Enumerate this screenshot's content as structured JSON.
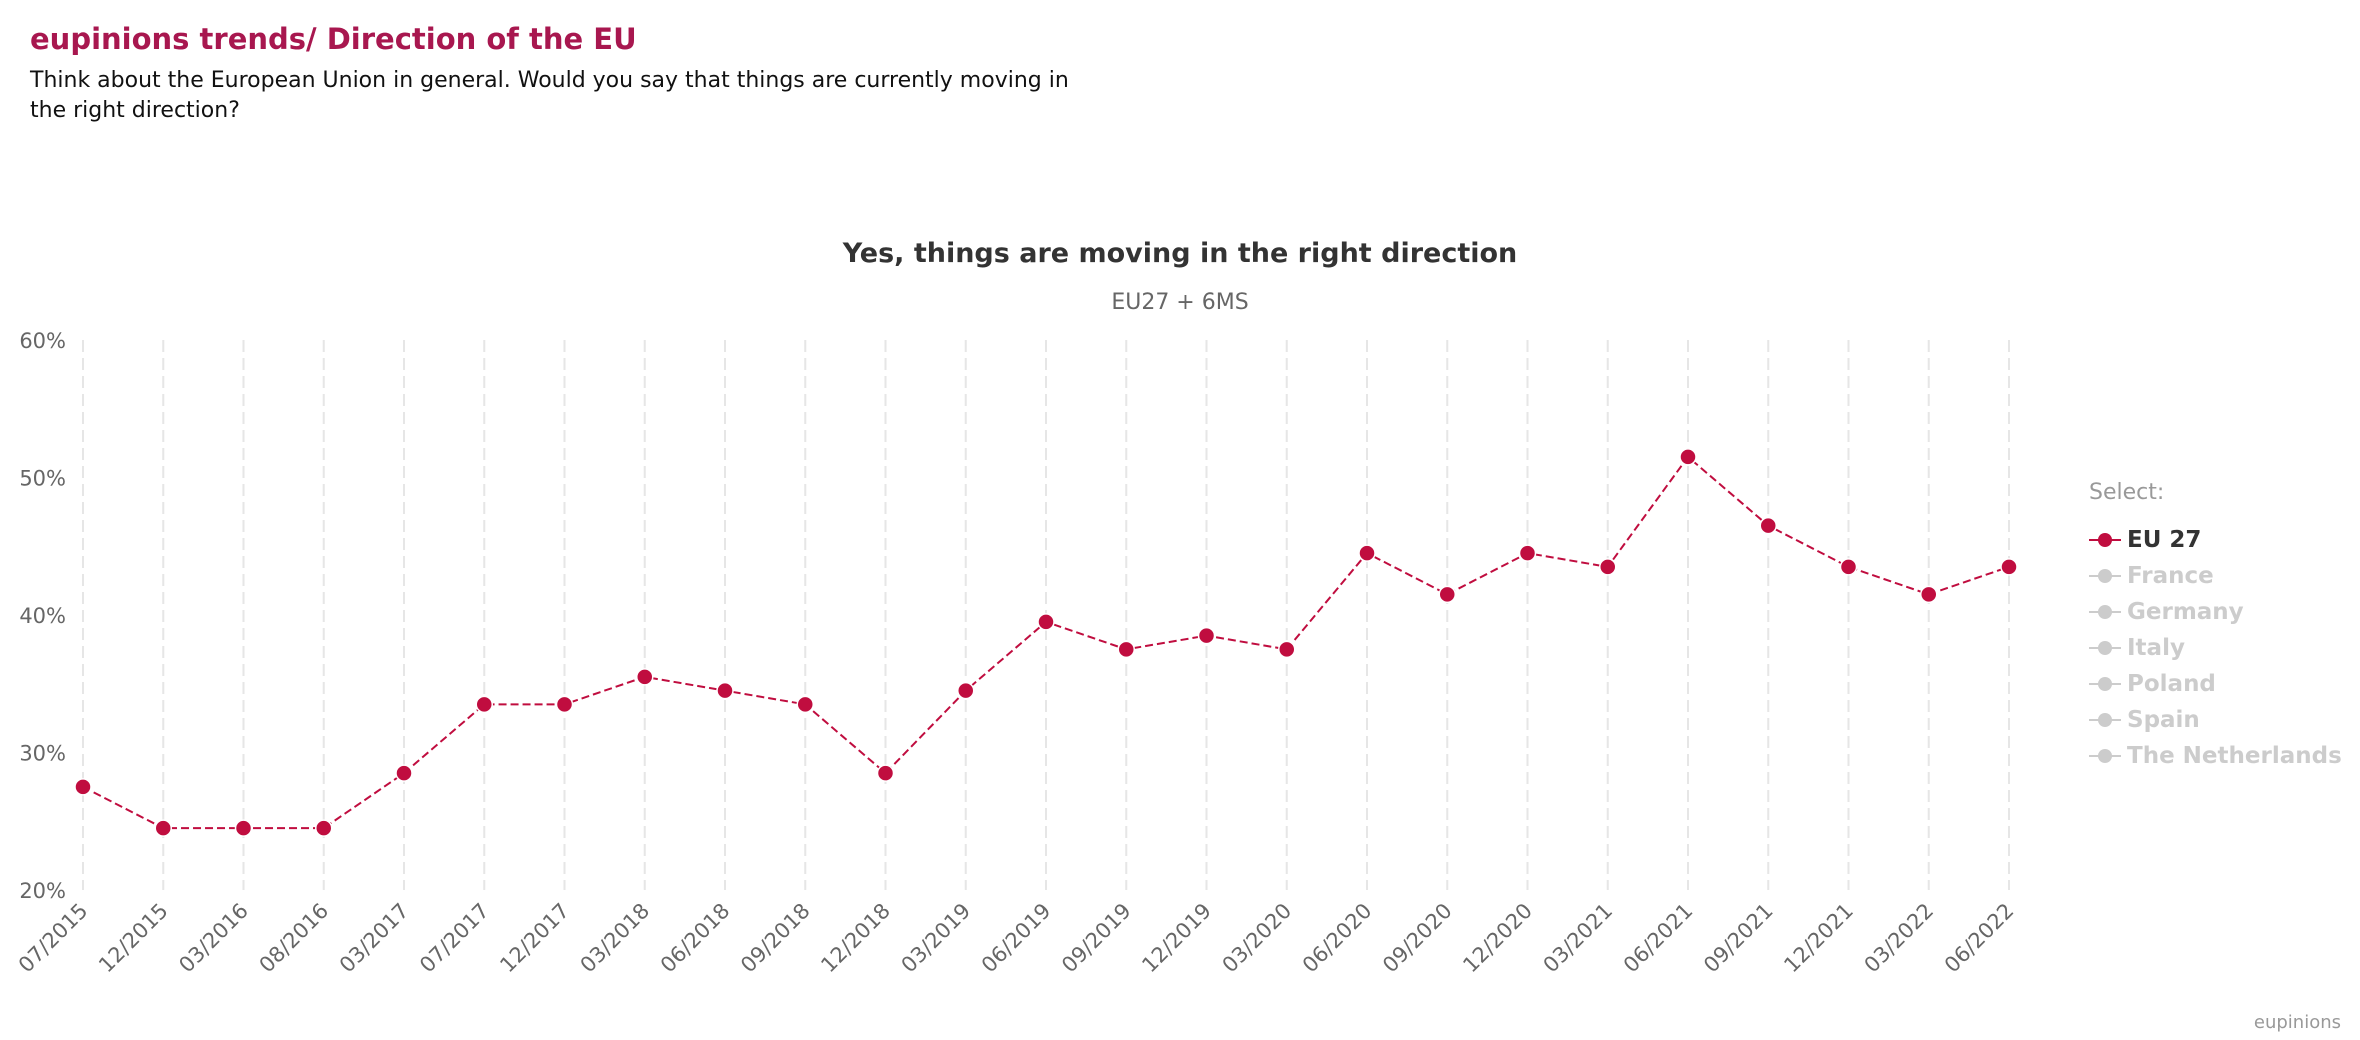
{
  "header": {
    "title": "eupinions trends/ Direction of the EU",
    "subtitle": "Think about the European Union in general. Would you say that things are currently moving in the right direction?"
  },
  "chart_data": {
    "type": "line",
    "title": "Yes, things are moving in the right direction",
    "subtitle": "EU27 + 6MS",
    "categories": [
      "07/2015",
      "12/2015",
      "03/2016",
      "08/2016",
      "03/2017",
      "07/2017",
      "12/2017",
      "03/2018",
      "06/2018",
      "09/2018",
      "12/2018",
      "03/2019",
      "06/2019",
      "09/2019",
      "12/2019",
      "03/2020",
      "06/2020",
      "09/2020",
      "12/2020",
      "03/2021",
      "06/2021",
      "09/2021",
      "12/2021",
      "03/2022",
      "06/2022"
    ],
    "ylim": [
      20,
      60
    ],
    "yticks": [
      20,
      30,
      40,
      50,
      60
    ],
    "ytick_labels": [
      "20%",
      "30%",
      "40%",
      "50%",
      "60%"
    ],
    "xlabel": "",
    "ylabel": "",
    "grid": "vertical dashed",
    "series": [
      {
        "name": "EU 27",
        "visible": true,
        "color": "#c00d3f",
        "values": [
          27.5,
          24.5,
          24.5,
          24.5,
          28.5,
          33.5,
          33.5,
          35.5,
          34.5,
          33.5,
          28.5,
          34.5,
          39.5,
          37.5,
          38.5,
          37.5,
          44.5,
          41.5,
          44.5,
          43.5,
          51.5,
          46.5,
          43.5,
          41.5,
          43.5
        ]
      },
      {
        "name": "France",
        "visible": false,
        "color": "#cccccc"
      },
      {
        "name": "Germany",
        "visible": false,
        "color": "#cccccc"
      },
      {
        "name": "Italy",
        "visible": false,
        "color": "#cccccc"
      },
      {
        "name": "Poland",
        "visible": false,
        "color": "#cccccc"
      },
      {
        "name": "Spain",
        "visible": false,
        "color": "#cccccc"
      },
      {
        "name": "The Netherlands",
        "visible": false,
        "color": "#cccccc"
      }
    ],
    "legend": {
      "title": "Select:",
      "placement": "right",
      "active_text_color": "#333333",
      "inactive_color": "#cccccc"
    }
  },
  "credits": "eupinions"
}
